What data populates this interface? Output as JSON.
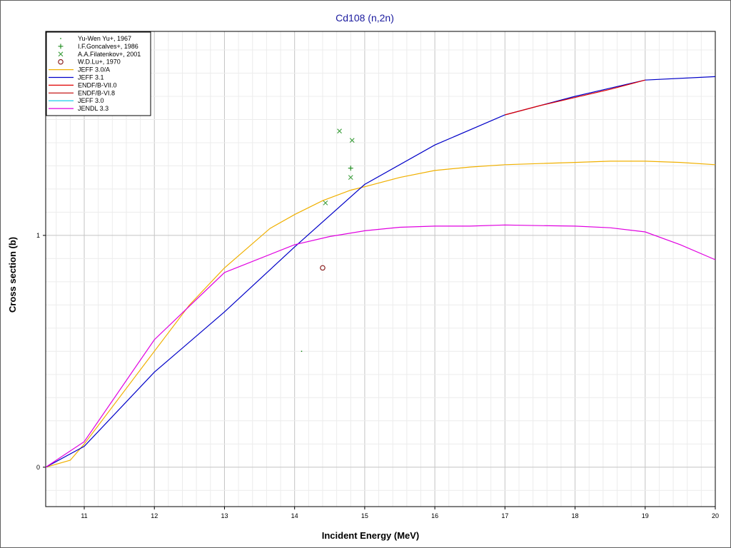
{
  "chart_data": {
    "type": "line",
    "title": "Cd108 (n,2n)",
    "xlabel": "Incident Energy (MeV)",
    "ylabel": "Cross section (b)",
    "xlim": [
      10.45,
      20.0
    ],
    "ylim": [
      -0.17,
      1.88
    ],
    "grid": true,
    "legend_position": "top-left",
    "x_ticks": [
      {
        "value": 11,
        "label": "11"
      },
      {
        "value": 12,
        "label": "12"
      },
      {
        "value": 13,
        "label": "13"
      },
      {
        "value": 14,
        "label": "14"
      },
      {
        "value": 15,
        "label": "15"
      },
      {
        "value": 16,
        "label": "16"
      },
      {
        "value": 17,
        "label": "17"
      },
      {
        "value": 18,
        "label": "18"
      },
      {
        "value": 19,
        "label": "19"
      },
      {
        "value": 20,
        "label": "20"
      }
    ],
    "y_ticks": [
      {
        "value": 0,
        "label": "0"
      },
      {
        "value": 1,
        "label": "1"
      }
    ],
    "series": [
      {
        "name": "Yu-Wen Yu+, 1967",
        "kind": "scatter",
        "marker": "dot",
        "color": "#008000",
        "points": [
          {
            "x": 14.1,
            "y": 0.5
          }
        ]
      },
      {
        "name": "I.F.Goncalves+, 1986",
        "kind": "scatter",
        "marker": "plus",
        "color": "#1a8a1a",
        "points": [
          {
            "x": 14.8,
            "y": 1.29
          }
        ]
      },
      {
        "name": "A.A.Filatenkov+, 2001",
        "kind": "scatter",
        "marker": "cross",
        "color": "#40a040",
        "points": [
          {
            "x": 14.44,
            "y": 1.14
          },
          {
            "x": 14.64,
            "y": 1.45
          },
          {
            "x": 14.8,
            "y": 1.25
          },
          {
            "x": 14.82,
            "y": 1.41
          }
        ]
      },
      {
        "name": "W.D.Lu+, 1970",
        "kind": "scatter",
        "marker": "circle",
        "color": "#8b2020",
        "points": [
          {
            "x": 14.4,
            "y": 0.86
          }
        ]
      },
      {
        "name": "JEFF 3.0/A",
        "kind": "line",
        "color": "#f0b000",
        "points": [
          {
            "x": 10.45,
            "y": 0.0
          },
          {
            "x": 10.8,
            "y": 0.03
          },
          {
            "x": 11.0,
            "y": 0.1
          },
          {
            "x": 11.5,
            "y": 0.3
          },
          {
            "x": 12.0,
            "y": 0.5
          },
          {
            "x": 12.5,
            "y": 0.7
          },
          {
            "x": 13.0,
            "y": 0.86
          },
          {
            "x": 13.65,
            "y": 1.03
          },
          {
            "x": 14.0,
            "y": 1.09
          },
          {
            "x": 14.4,
            "y": 1.15
          },
          {
            "x": 14.8,
            "y": 1.195
          },
          {
            "x": 15.0,
            "y": 1.21
          },
          {
            "x": 15.5,
            "y": 1.25
          },
          {
            "x": 16.0,
            "y": 1.28
          },
          {
            "x": 16.5,
            "y": 1.295
          },
          {
            "x": 17.0,
            "y": 1.305
          },
          {
            "x": 17.5,
            "y": 1.31
          },
          {
            "x": 18.0,
            "y": 1.315
          },
          {
            "x": 18.5,
            "y": 1.32
          },
          {
            "x": 19.0,
            "y": 1.32
          },
          {
            "x": 19.5,
            "y": 1.315
          },
          {
            "x": 20.0,
            "y": 1.305
          }
        ]
      },
      {
        "name": "JEFF 3.1",
        "kind": "line",
        "color": "#0000c8",
        "points": [
          {
            "x": 10.45,
            "y": 0.0
          },
          {
            "x": 11.0,
            "y": 0.09
          },
          {
            "x": 12.0,
            "y": 0.41
          },
          {
            "x": 13.0,
            "y": 0.67
          },
          {
            "x": 14.0,
            "y": 0.95
          },
          {
            "x": 15.0,
            "y": 1.22
          },
          {
            "x": 16.0,
            "y": 1.39
          },
          {
            "x": 17.0,
            "y": 1.52
          },
          {
            "x": 18.0,
            "y": 1.6
          },
          {
            "x": 19.0,
            "y": 1.67
          },
          {
            "x": 20.0,
            "y": 1.685
          }
        ]
      },
      {
        "name": "ENDF/B-VII.0",
        "kind": "line",
        "color": "#e00000",
        "points": [
          {
            "x": 17.0,
            "y": 1.52
          },
          {
            "x": 17.5,
            "y": 1.56
          },
          {
            "x": 18.0,
            "y": 1.595
          },
          {
            "x": 18.5,
            "y": 1.63
          },
          {
            "x": 19.0,
            "y": 1.67
          }
        ]
      },
      {
        "name": "ENDF/B-VI.8",
        "kind": "line",
        "color": "#c00000",
        "points": []
      },
      {
        "name": "JEFF 3.0",
        "kind": "line",
        "color": "#00c8e8",
        "points": []
      },
      {
        "name": "JENDL 3.3",
        "kind": "line",
        "color": "#e000e0",
        "points": [
          {
            "x": 10.45,
            "y": 0.0
          },
          {
            "x": 11.0,
            "y": 0.11
          },
          {
            "x": 12.0,
            "y": 0.55
          },
          {
            "x": 13.0,
            "y": 0.84
          },
          {
            "x": 14.0,
            "y": 0.96
          },
          {
            "x": 14.5,
            "y": 0.995
          },
          {
            "x": 15.0,
            "y": 1.02
          },
          {
            "x": 15.5,
            "y": 1.035
          },
          {
            "x": 16.0,
            "y": 1.04
          },
          {
            "x": 16.5,
            "y": 1.04
          },
          {
            "x": 17.0,
            "y": 1.045
          },
          {
            "x": 17.5,
            "y": 1.042
          },
          {
            "x": 18.0,
            "y": 1.04
          },
          {
            "x": 18.5,
            "y": 1.033
          },
          {
            "x": 19.0,
            "y": 1.015
          },
          {
            "x": 19.5,
            "y": 0.96
          },
          {
            "x": 20.0,
            "y": 0.895
          }
        ]
      }
    ]
  }
}
